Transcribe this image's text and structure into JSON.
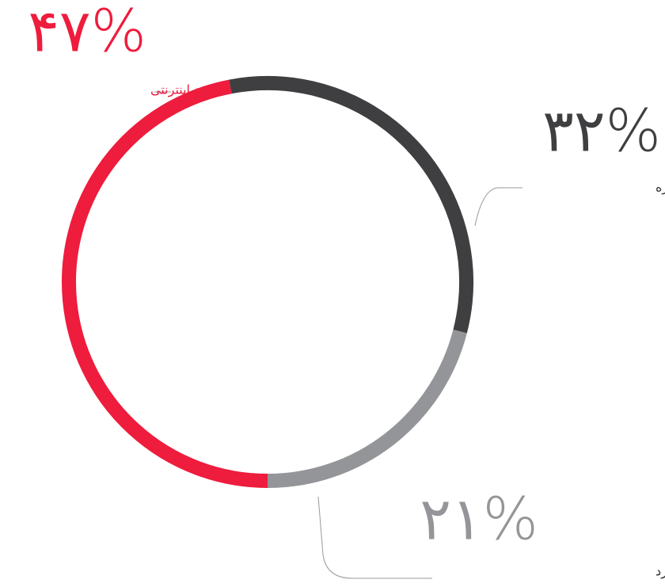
{
  "chart_data": {
    "type": "pie",
    "donut": true,
    "categories": [
      "خرید اینترنتی",
      "مراجعه به مغازه",
      "بستگی به شرایط و نوع کالا دارد"
    ],
    "values": [
      47,
      32,
      21
    ],
    "value_labels": [
      "۴۷%",
      "۳۲%",
      "۲۱%"
    ],
    "colors": [
      "#ee1c3d",
      "#3f3f41",
      "#949598"
    ]
  }
}
